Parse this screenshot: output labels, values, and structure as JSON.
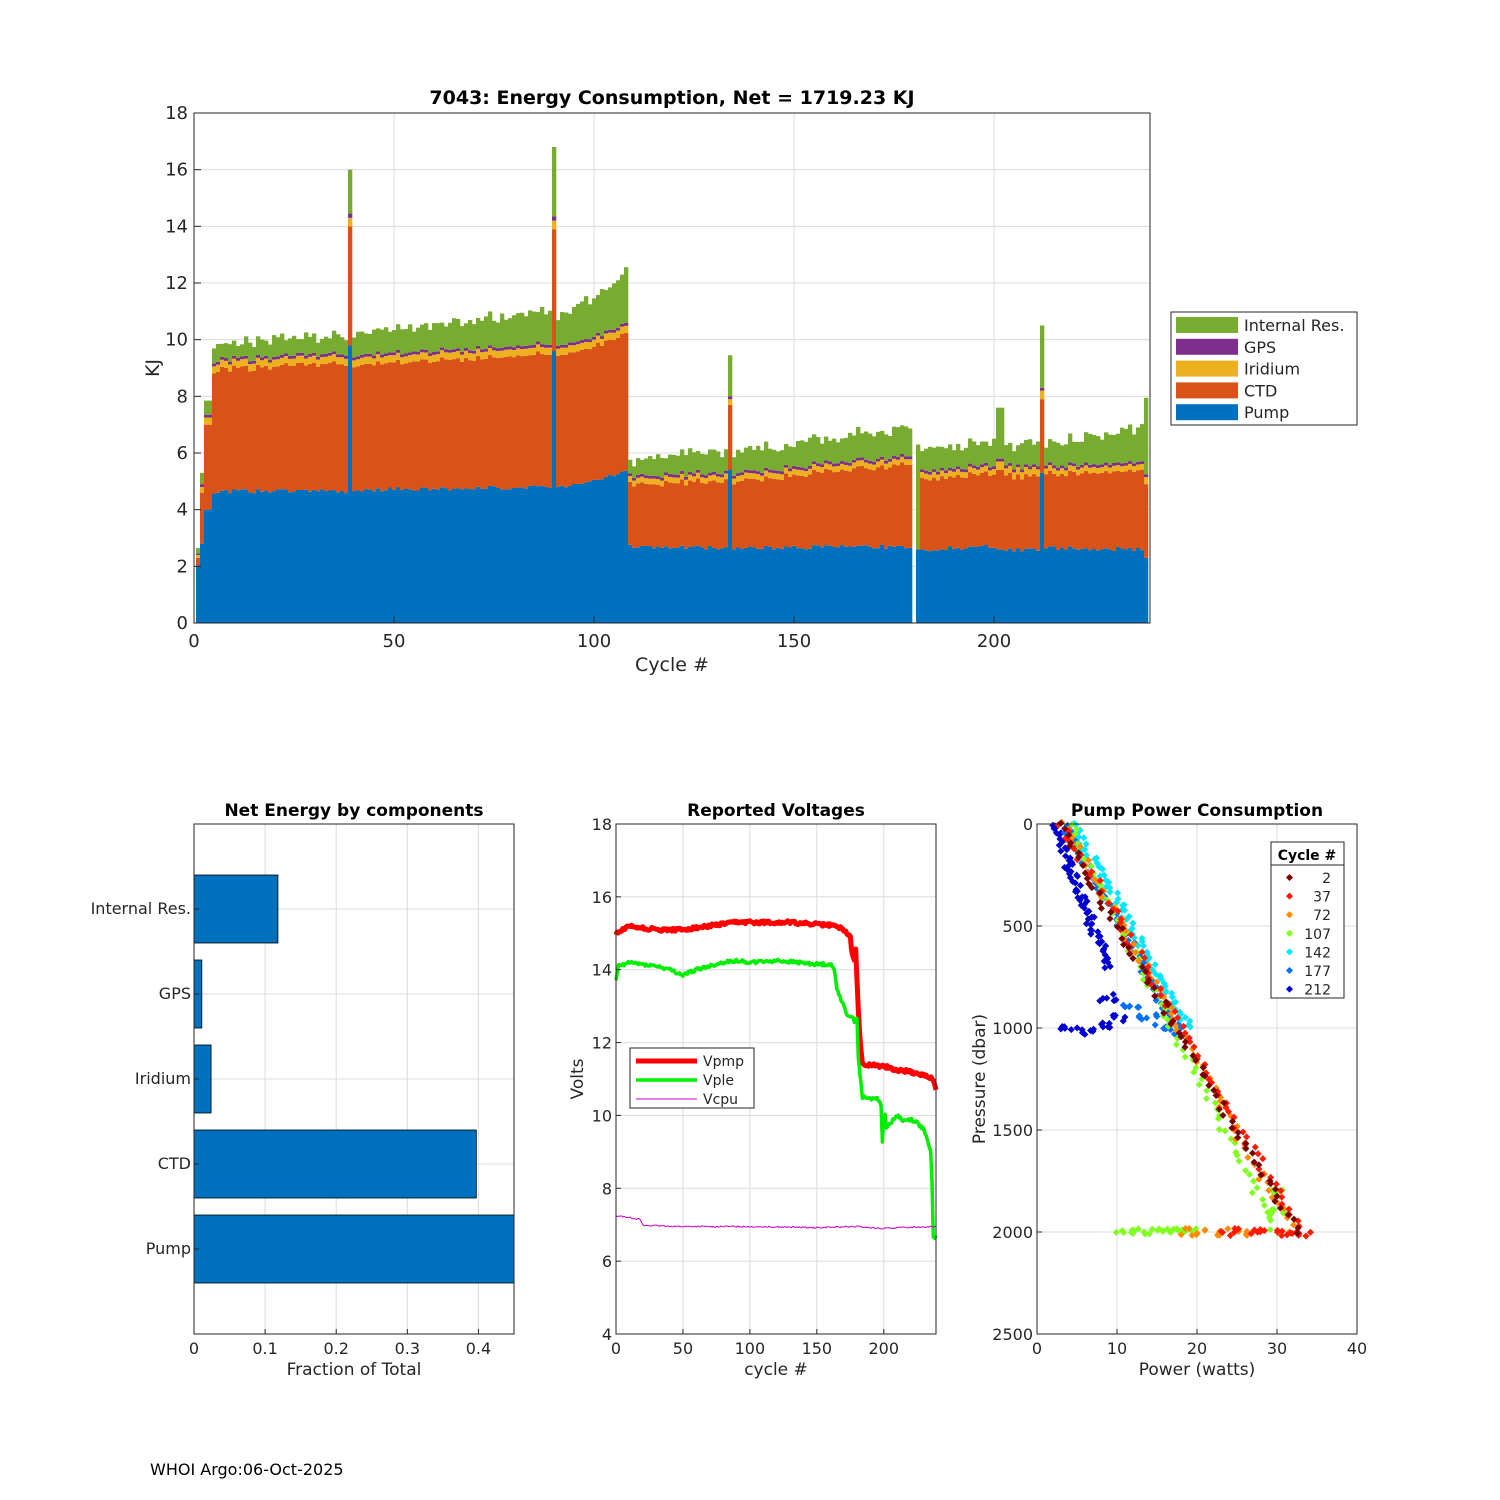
{
  "footer": "WHOI Argo:06-Oct-2025",
  "colors": {
    "pump": "#0072BD",
    "ctd": "#D95319",
    "iridium": "#EDB120",
    "gps": "#7E2F8E",
    "internal": "#77AC30",
    "vpmp": "#ff0000",
    "vple": "#00ee00",
    "vcpu": "#cc00cc",
    "grid": "#dcdcdc",
    "axis": "#262626"
  },
  "chart_data": [
    {
      "type": "bar",
      "stacked": true,
      "title": "7043: Energy Consumption,  Net = 1719.23 KJ",
      "xlabel": "Cycle #",
      "ylabel": "KJ",
      "xlim": [
        0,
        239
      ],
      "ylim": [
        0,
        18
      ],
      "xticks": [
        "0",
        "50",
        "100",
        "150",
        "200"
      ],
      "yticks": [
        "0",
        "2",
        "4",
        "6",
        "8",
        "10",
        "12",
        "14",
        "16",
        "18"
      ],
      "legend": {
        "position": "right-outside",
        "order": [
          "Internal Res.",
          "GPS",
          "Iridium",
          "CTD",
          "Pump"
        ]
      },
      "series_names": [
        "Pump",
        "CTD",
        "Iridium",
        "GPS",
        "Internal Res."
      ],
      "segments": [
        {
          "from": 1,
          "to": 1,
          "pump": 2.0,
          "ctd": 0.3,
          "iridium": 0.1,
          "gps": 0.05,
          "internal": 0.2
        },
        {
          "from": 2,
          "to": 2,
          "pump": 2.8,
          "ctd": 1.8,
          "iridium": 0.2,
          "gps": 0.1,
          "internal": 0.4
        },
        {
          "from": 3,
          "to": 4,
          "pump": 4.0,
          "ctd": 3.0,
          "iridium": 0.25,
          "gps": 0.1,
          "internal": 0.5
        },
        {
          "from": 5,
          "to": 38,
          "pump": 4.65,
          "pump_end": 4.65,
          "ctd": 4.3,
          "ctd_end": 4.5,
          "iridium": 0.25,
          "gps": 0.1,
          "internal": 0.55,
          "internal_end": 0.7
        },
        {
          "from": 39,
          "to": 39,
          "pump": 9.8,
          "ctd": 4.2,
          "iridium": 0.3,
          "gps": 0.15,
          "internal": 1.55
        },
        {
          "from": 40,
          "to": 89,
          "pump": 4.7,
          "pump_end": 4.8,
          "ctd": 4.4,
          "ctd_end": 4.7,
          "iridium": 0.25,
          "gps": 0.1,
          "internal": 0.7,
          "internal_end": 1.2
        },
        {
          "from": 90,
          "to": 90,
          "pump": 9.6,
          "ctd": 4.3,
          "iridium": 0.3,
          "gps": 0.15,
          "internal": 2.45
        },
        {
          "from": 91,
          "to": 108,
          "pump": 4.8,
          "pump_end": 5.3,
          "ctd": 4.65,
          "ctd_end": 4.85,
          "iridium": 0.25,
          "gps": 0.1,
          "internal": 1.0,
          "internal_end": 1.85
        },
        {
          "from": 109,
          "to": 133,
          "pump": 2.7,
          "pump_end": 2.65,
          "ctd": 2.2,
          "ctd_end": 2.35,
          "iridium": 0.2,
          "gps": 0.1,
          "internal": 0.55,
          "internal_end": 0.75
        },
        {
          "from": 134,
          "to": 134,
          "pump": 5.4,
          "ctd": 2.3,
          "iridium": 0.2,
          "gps": 0.1,
          "internal": 1.45
        },
        {
          "from": 135,
          "to": 179,
          "pump": 2.65,
          "pump_end": 2.7,
          "ctd": 2.35,
          "ctd_end": 2.9,
          "iridium": 0.2,
          "gps": 0.1,
          "internal": 0.75,
          "internal_end": 1.0
        },
        {
          "from": 180,
          "to": 180,
          "pump": 0,
          "ctd": 0,
          "iridium": 0,
          "gps": 0,
          "internal": 0
        },
        {
          "from": 181,
          "to": 181,
          "pump": 2.6,
          "ctd": 0,
          "iridium": 0,
          "gps": 0,
          "internal": 3.7
        },
        {
          "from": 182,
          "to": 200,
          "pump": 2.6,
          "pump_end": 2.7,
          "ctd": 2.5,
          "ctd_end": 2.6,
          "iridium": 0.2,
          "gps": 0.1,
          "internal": 0.7,
          "internal_end": 0.9
        },
        {
          "from": 201,
          "to": 202,
          "pump": 2.6,
          "ctd": 2.8,
          "iridium": 0.3,
          "gps": 0.1,
          "internal": 1.8
        },
        {
          "from": 203,
          "to": 211,
          "pump": 2.6,
          "ctd": 2.6,
          "iridium": 0.25,
          "gps": 0.1,
          "internal": 0.8
        },
        {
          "from": 212,
          "to": 212,
          "pump": 5.3,
          "ctd": 2.6,
          "iridium": 0.3,
          "gps": 0.1,
          "internal": 2.2
        },
        {
          "from": 213,
          "to": 237,
          "pump": 2.65,
          "pump_end": 2.6,
          "ctd": 2.6,
          "ctd_end": 2.8,
          "iridium": 0.2,
          "gps": 0.1,
          "internal": 0.8,
          "internal_end": 1.2
        },
        {
          "from": 238,
          "to": 238,
          "pump": 2.3,
          "ctd": 2.6,
          "iridium": 0.25,
          "gps": 0.1,
          "internal": 2.7
        }
      ]
    },
    {
      "type": "bar",
      "orientation": "horizontal",
      "title": "Net Energy by components",
      "xlabel": "Fraction of Total",
      "categories": [
        "Internal Res.",
        "GPS",
        "Iridium",
        "CTD",
        "Pump"
      ],
      "values": [
        0.118,
        0.011,
        0.024,
        0.397,
        0.45
      ],
      "xlim": [
        0,
        0.45
      ],
      "xticks": [
        "0",
        "0.1",
        "0.2",
        "0.3",
        "0.4"
      ]
    },
    {
      "type": "line",
      "title": "Reported Voltages",
      "xlabel": "cycle #",
      "ylabel": "Volts",
      "xlim": [
        0,
        239
      ],
      "ylim": [
        4,
        18
      ],
      "xticks": [
        "0",
        "50",
        "100",
        "150",
        "200"
      ],
      "yticks": [
        "4",
        "6",
        "8",
        "10",
        "12",
        "14",
        "16",
        "18"
      ],
      "legend": {
        "position": "left",
        "entries": [
          "Vpmp",
          "Vple",
          "Vcpu"
        ]
      },
      "series": [
        {
          "name": "Vpmp",
          "x": [
            0,
            10,
            30,
            50,
            70,
            90,
            110,
            130,
            150,
            165,
            170,
            175,
            176,
            178,
            179,
            181,
            182,
            184,
            186,
            200,
            210,
            220,
            230,
            237,
            238,
            239
          ],
          "y": [
            15.0,
            15.2,
            15.1,
            15.1,
            15.2,
            15.3,
            15.3,
            15.3,
            15.25,
            15.2,
            15.1,
            14.9,
            14.5,
            14.3,
            14.6,
            12.9,
            12.2,
            11.4,
            11.4,
            11.35,
            11.25,
            11.2,
            11.1,
            11.0,
            10.8,
            10.7
          ]
        },
        {
          "name": "Vple",
          "x": [
            0,
            2,
            10,
            30,
            40,
            50,
            60,
            80,
            90,
            100,
            120,
            150,
            160,
            163,
            165,
            168,
            172,
            176,
            178,
            180,
            181,
            182,
            184,
            190,
            195,
            198,
            199,
            200,
            201,
            202,
            205,
            210,
            215,
            220,
            225,
            230,
            235,
            236,
            237,
            238,
            239
          ],
          "y": [
            13.7,
            14.1,
            14.2,
            14.1,
            14.0,
            13.85,
            14.0,
            14.2,
            14.25,
            14.2,
            14.25,
            14.15,
            14.15,
            14.0,
            13.5,
            13.2,
            12.8,
            12.7,
            12.6,
            12.7,
            11.6,
            11.2,
            10.5,
            10.45,
            10.5,
            10.3,
            9.3,
            9.9,
            10.0,
            9.7,
            9.8,
            10.0,
            9.85,
            9.9,
            9.8,
            9.6,
            9.0,
            8.2,
            6.7,
            6.6,
            6.7
          ]
        },
        {
          "name": "Vcpu",
          "x": [
            0,
            10,
            18,
            20,
            50,
            100,
            150,
            180,
            195,
            200,
            220,
            239
          ],
          "y": [
            7.25,
            7.2,
            7.15,
            6.98,
            6.95,
            6.95,
            6.92,
            6.95,
            6.9,
            6.9,
            6.93,
            6.95
          ]
        }
      ]
    },
    {
      "type": "scatter",
      "title": "Pump Power Consumption",
      "xlabel": "Power (watts)",
      "ylabel": "Pressure (dbar)",
      "xlim": [
        0,
        40
      ],
      "ylim": [
        0,
        2500
      ],
      "y_reversed": true,
      "xticks": [
        "0",
        "10",
        "20",
        "30",
        "40"
      ],
      "yticks": [
        "0",
        "500",
        "1000",
        "1500",
        "2000",
        "2500"
      ],
      "legend": {
        "title": "Cycle #",
        "position": "top-right",
        "entries": [
          {
            "label": "2",
            "color": "#7a0000"
          },
          {
            "label": "37",
            "color": "#ff1a00"
          },
          {
            "label": "72",
            "color": "#ff8c00"
          },
          {
            "label": "107",
            "color": "#80ff20"
          },
          {
            "label": "142",
            "color": "#00e8ff"
          },
          {
            "label": "177",
            "color": "#0070ff"
          },
          {
            "label": "212",
            "color": "#0000d0"
          }
        ]
      },
      "groups": [
        {
          "cycle": "2",
          "color": "#7a0000",
          "line": [
            [
              2.5,
              0
            ],
            [
              32.5,
              2000
            ]
          ],
          "extra": []
        },
        {
          "cycle": "37",
          "color": "#ff1a00",
          "line": [
            [
              3.0,
              0
            ],
            [
              33.0,
              2000
            ]
          ],
          "extra": [
            [
              24,
              2000
            ],
            [
              28,
              2000
            ],
            [
              31,
              2005
            ],
            [
              33,
              2010
            ]
          ]
        },
        {
          "cycle": "72",
          "color": "#ff8c00",
          "line": [
            [
              3.5,
              0
            ],
            [
              32.0,
              2000
            ]
          ],
          "extra": [
            [
              19,
              2000
            ],
            [
              22,
              2000
            ],
            [
              25,
              2000
            ]
          ]
        },
        {
          "cycle": "107",
          "color": "#80ff20",
          "line": [
            [
              4.0,
              0
            ],
            [
              30.0,
              2010
            ]
          ],
          "extra": [
            [
              11,
              2000
            ],
            [
              13,
              2000
            ],
            [
              15,
              2000
            ],
            [
              17,
              2000
            ],
            [
              19,
              2000
            ],
            [
              30,
              1800
            ],
            [
              30,
              1900
            ]
          ]
        },
        {
          "cycle": "142",
          "color": "#00e8ff",
          "line": [
            [
              4.5,
              0
            ],
            [
              19.0,
              1000
            ]
          ],
          "extra": []
        },
        {
          "cycle": "177",
          "color": "#0070ff",
          "line": [
            [
              3.5,
              0
            ],
            [
              18.0,
              1050
            ]
          ],
          "extra": [
            [
              12,
              900
            ],
            [
              14,
              950
            ],
            [
              16,
              1000
            ]
          ]
        },
        {
          "cycle": "212",
          "color": "#0000d0",
          "line": [
            [
              2.0,
              0
            ],
            [
              9.0,
              700
            ]
          ],
          "extra": [
            [
              4,
              1000
            ],
            [
              6,
              1020
            ],
            [
              8,
              980
            ],
            [
              10,
              950
            ],
            [
              9,
              850
            ]
          ]
        }
      ]
    }
  ]
}
